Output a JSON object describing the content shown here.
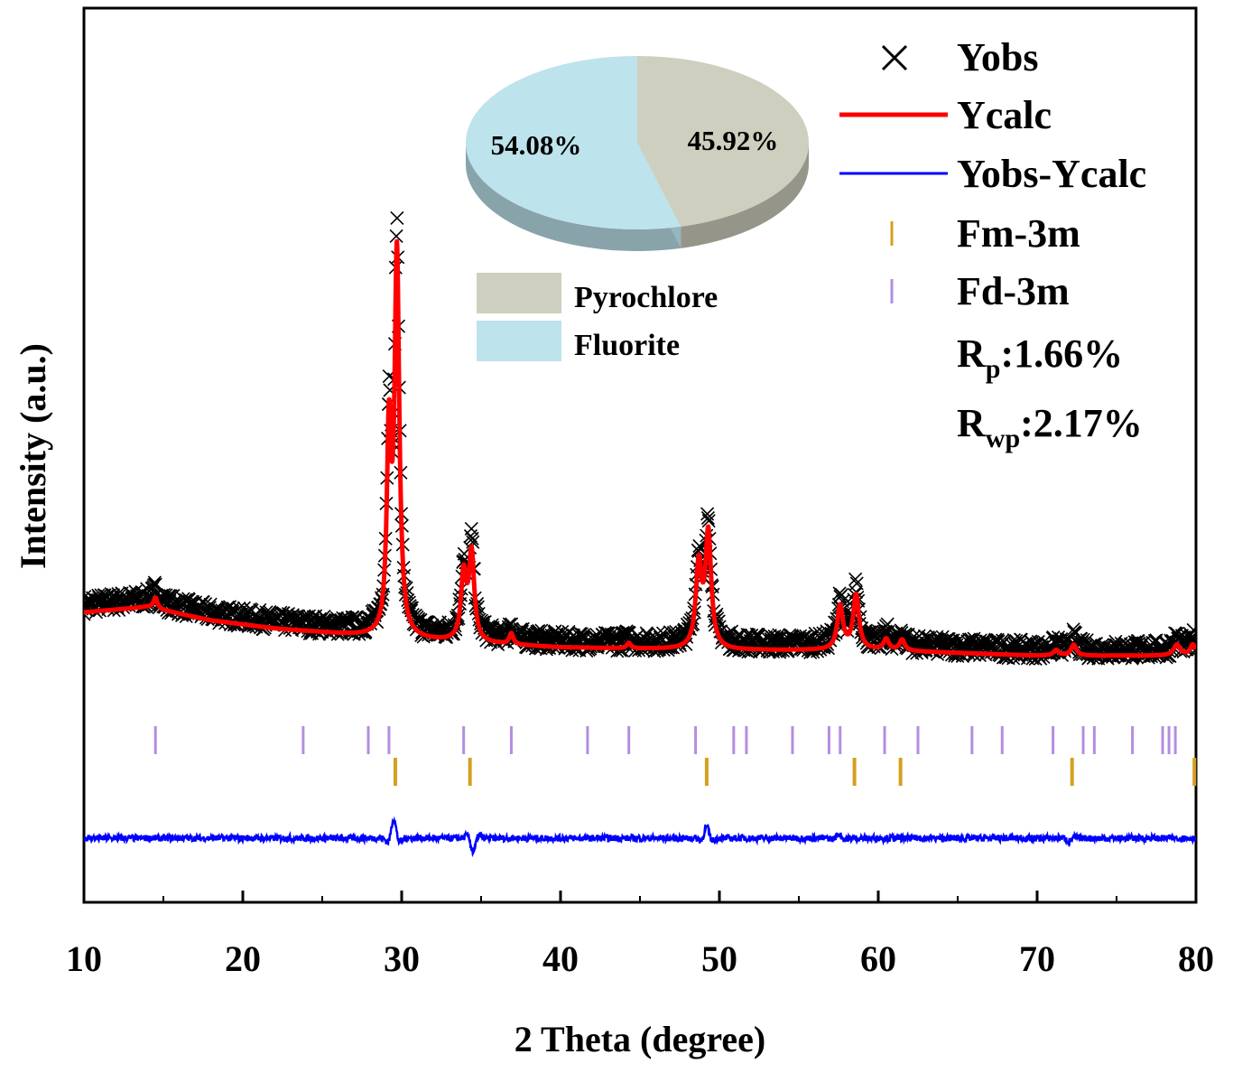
{
  "chart_data": {
    "type": "line",
    "xlabel": "2 Theta (degree)",
    "ylabel": "Intensity (a.u.)",
    "xlim": [
      10,
      80
    ],
    "x_ticks": [
      10,
      20,
      30,
      40,
      50,
      60,
      70,
      80
    ],
    "y_ticks_shown": false,
    "legend": {
      "placement": "top-right",
      "entries": [
        {
          "label": "Yobs",
          "marker": "cross",
          "color": "#000000"
        },
        {
          "label": "Ycalc",
          "marker": "line",
          "color": "#ff0000"
        },
        {
          "label": "Yobs-Ycalc",
          "marker": "line",
          "color": "#0000ff"
        },
        {
          "label": "Fm-3m",
          "marker": "tick",
          "color": "#d4a020"
        },
        {
          "label": "Fd-3m",
          "marker": "tick",
          "color": "#b28ee0"
        }
      ]
    },
    "fit_stats": {
      "Rp": {
        "base": "R",
        "sub": "p",
        "value": ":1.66%"
      },
      "Rwp": {
        "base": "R",
        "sub": "wp",
        "value": ":2.17%"
      }
    },
    "profile": {
      "background": [
        [
          10,
          0.05
        ],
        [
          14,
          0.06
        ],
        [
          18,
          0.035
        ],
        [
          22,
          0.02
        ],
        [
          30,
          0.0
        ],
        [
          40,
          -0.015
        ],
        [
          50,
          -0.02
        ],
        [
          60,
          -0.02
        ],
        [
          70,
          -0.03
        ],
        [
          80,
          -0.03
        ]
      ],
      "peaks_calc": [
        {
          "pos": 14.5,
          "height": 0.02,
          "width": 0.15
        },
        {
          "pos": 29.2,
          "height": 0.36,
          "width": 0.16
        },
        {
          "pos": 29.7,
          "height": 0.7,
          "width": 0.18
        },
        {
          "pos": 33.9,
          "height": 0.12,
          "width": 0.2
        },
        {
          "pos": 34.4,
          "height": 0.16,
          "width": 0.2
        },
        {
          "pos": 36.9,
          "height": 0.02,
          "width": 0.15
        },
        {
          "pos": 44.3,
          "height": 0.01,
          "width": 0.15
        },
        {
          "pos": 48.7,
          "height": 0.15,
          "width": 0.22
        },
        {
          "pos": 49.3,
          "height": 0.21,
          "width": 0.22
        },
        {
          "pos": 57.6,
          "height": 0.08,
          "width": 0.22
        },
        {
          "pos": 58.6,
          "height": 0.1,
          "width": 0.22
        },
        {
          "pos": 60.5,
          "height": 0.02,
          "width": 0.2
        },
        {
          "pos": 61.5,
          "height": 0.02,
          "width": 0.2
        },
        {
          "pos": 71.2,
          "height": 0.01,
          "width": 0.2
        },
        {
          "pos": 72.3,
          "height": 0.02,
          "width": 0.2
        },
        {
          "pos": 78.8,
          "height": 0.02,
          "width": 0.25
        },
        {
          "pos": 79.8,
          "height": 0.02,
          "width": 0.2
        }
      ],
      "diff_features": [
        {
          "pos": 29.5,
          "amp": 0.035
        },
        {
          "pos": 34.5,
          "amp": -0.025
        },
        {
          "pos": 49.2,
          "amp": 0.02
        },
        {
          "pos": 57.5,
          "amp": 0.008
        },
        {
          "pos": 72.0,
          "amp": -0.006
        }
      ]
    },
    "reflections": {
      "Fd-3m": [
        14.5,
        23.8,
        27.9,
        29.2,
        33.9,
        36.9,
        41.7,
        44.3,
        48.5,
        50.9,
        51.7,
        54.6,
        56.9,
        57.6,
        60.4,
        62.5,
        65.9,
        67.8,
        71.0,
        72.9,
        73.6,
        76.0,
        77.9,
        78.3,
        78.7
      ],
      "Fm-3m": [
        29.6,
        34.3,
        49.2,
        58.5,
        61.4,
        72.2,
        79.9
      ]
    },
    "inset_pie": {
      "type": "pie",
      "slices": [
        {
          "label": "Pyrochlore",
          "value": 45.92,
          "value_label": "45.92%",
          "color": "#cfcfbf"
        },
        {
          "label": "Fluorite",
          "value": 54.08,
          "value_label": "54.08%",
          "color": "#bde3ec"
        }
      ]
    }
  }
}
